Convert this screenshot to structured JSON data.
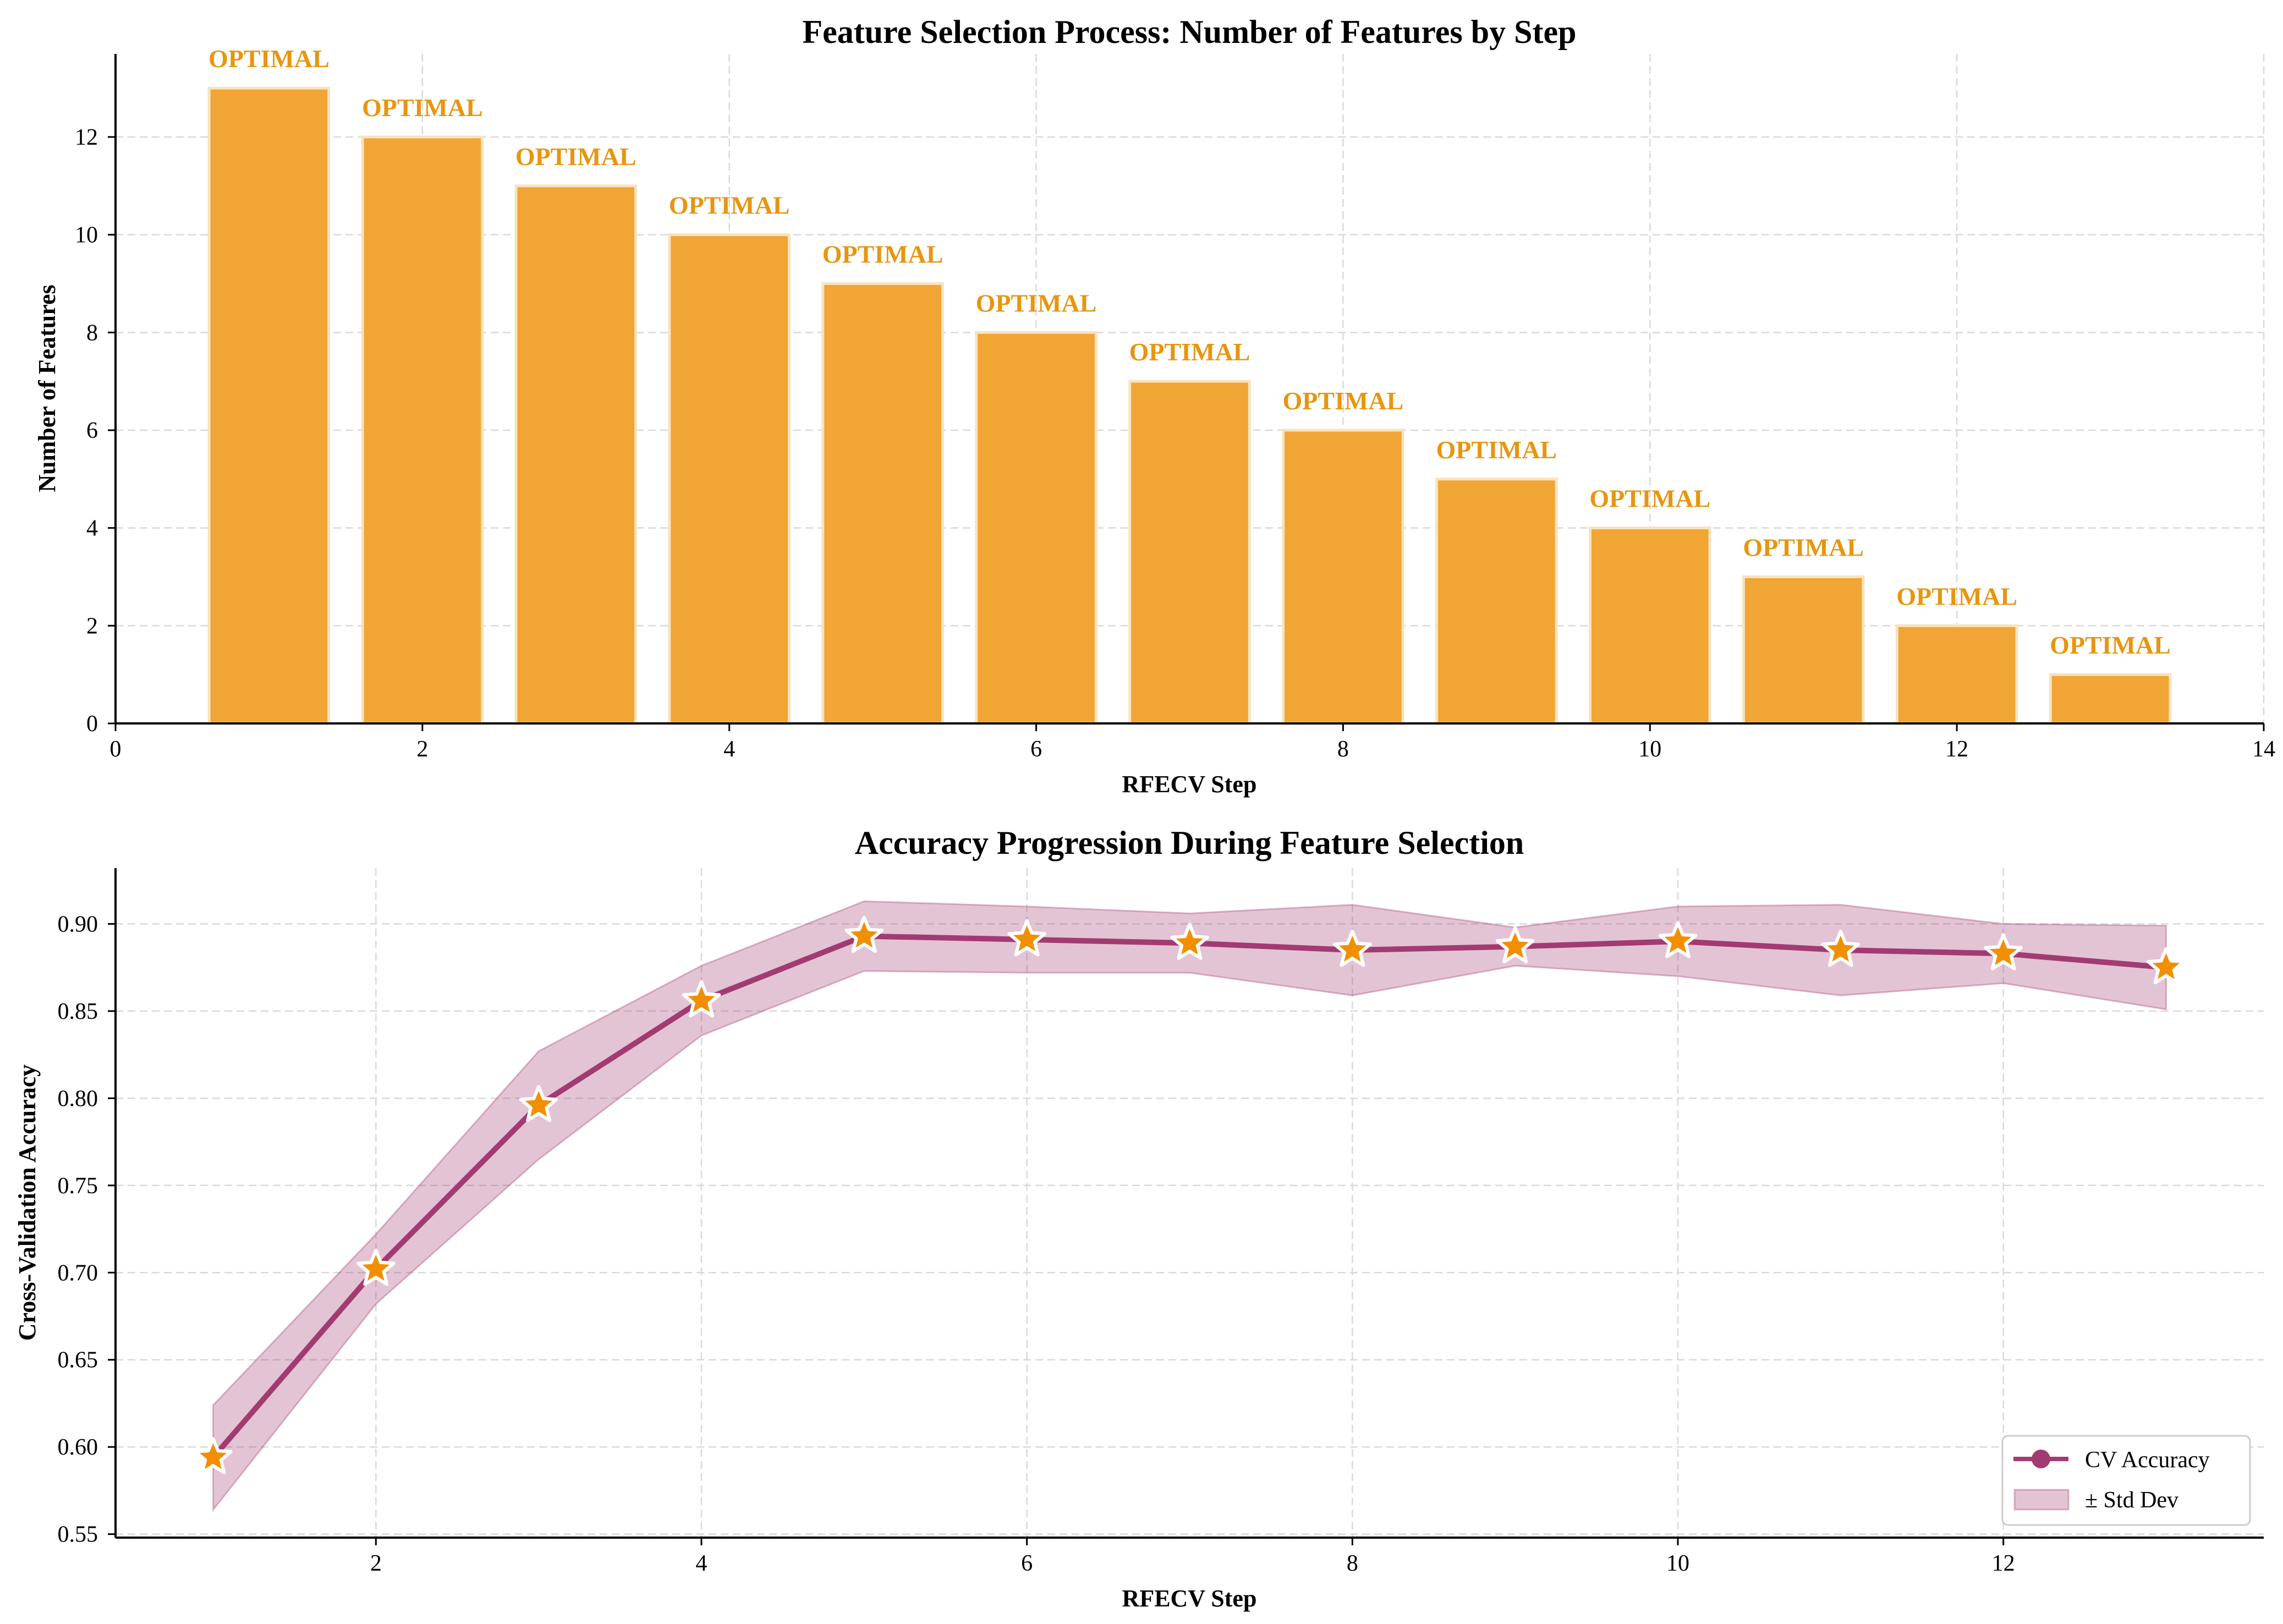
{
  "colors": {
    "bar_fill": "#F0A535",
    "bar_edge": "#F7E3C0",
    "bar_label": "#E8950F",
    "line": "#A23B72",
    "band_fill": "#A23B72",
    "marker_fill": "#F18F01",
    "marker_edge": "#ffffff"
  },
  "chart_data": [
    {
      "type": "bar",
      "title": "Feature Selection Process: Number of Features by Step",
      "xlabel": "RFECV Step",
      "ylabel": "Number of Features",
      "x": [
        1,
        2,
        3,
        4,
        5,
        6,
        7,
        8,
        9,
        10,
        11,
        12,
        13
      ],
      "values": [
        13,
        12,
        11,
        10,
        9,
        8,
        7,
        6,
        5,
        4,
        3,
        2,
        1
      ],
      "bar_labels": [
        "OPTIMAL",
        "OPTIMAL",
        "OPTIMAL",
        "OPTIMAL",
        "OPTIMAL",
        "OPTIMAL",
        "OPTIMAL",
        "OPTIMAL",
        "OPTIMAL",
        "OPTIMAL",
        "OPTIMAL",
        "OPTIMAL",
        "OPTIMAL"
      ],
      "xlim": [
        0,
        14
      ],
      "ylim": [
        0,
        13.7
      ],
      "xticks": [
        0,
        2,
        4,
        6,
        8,
        10,
        12,
        14
      ],
      "yticks": [
        0,
        2,
        4,
        6,
        8,
        10,
        12
      ],
      "grid": true
    },
    {
      "type": "line",
      "title": "Accuracy Progression During Feature Selection",
      "xlabel": "RFECV Step",
      "ylabel": "Cross-Validation Accuracy",
      "x": [
        1,
        2,
        3,
        4,
        5,
        6,
        7,
        8,
        9,
        10,
        11,
        12,
        13
      ],
      "series": [
        {
          "name": "CV Accuracy",
          "values": [
            0.594,
            0.702,
            0.796,
            0.856,
            0.893,
            0.891,
            0.889,
            0.885,
            0.887,
            0.89,
            0.885,
            0.883,
            0.875
          ]
        }
      ],
      "band": {
        "name": "± Std Dev",
        "upper": [
          0.624,
          0.722,
          0.827,
          0.876,
          0.913,
          0.91,
          0.906,
          0.911,
          0.898,
          0.91,
          0.911,
          0.9,
          0.899
        ],
        "lower": [
          0.564,
          0.682,
          0.765,
          0.836,
          0.873,
          0.872,
          0.872,
          0.859,
          0.876,
          0.87,
          0.859,
          0.866,
          0.851
        ]
      },
      "xlim": [
        0.4,
        13.6
      ],
      "ylim": [
        0.548,
        0.932
      ],
      "xticks": [
        2,
        4,
        6,
        8,
        10,
        12
      ],
      "yticks": [
        0.55,
        0.6,
        0.65,
        0.7,
        0.75,
        0.8,
        0.85,
        0.9
      ],
      "ytick_labels": [
        "0.55",
        "0.60",
        "0.65",
        "0.70",
        "0.75",
        "0.80",
        "0.85",
        "0.90"
      ],
      "grid": true,
      "legend": {
        "placement": "lower-right",
        "entries": [
          "CV Accuracy",
          "± Std Dev"
        ]
      }
    }
  ]
}
